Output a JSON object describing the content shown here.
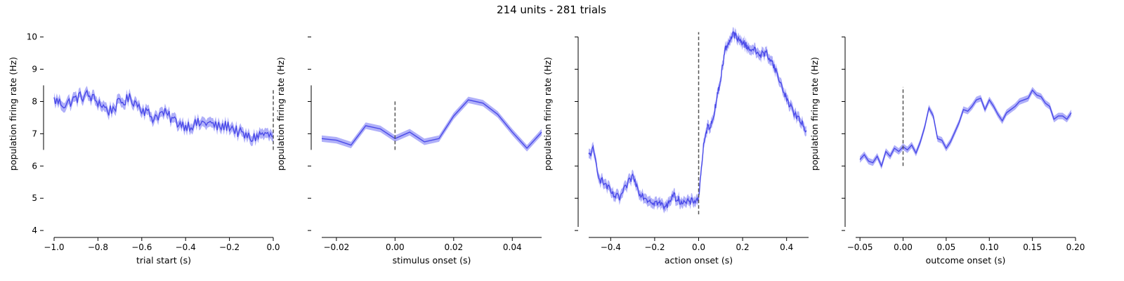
{
  "figure": {
    "title": "214 units - 281 trials"
  },
  "chart_data": [
    {
      "type": "line",
      "xlabel": "trial start (s)",
      "ylabel": "population firing rate (Hz)",
      "xlim": [
        -1.0,
        0.0
      ],
      "ylim": [
        3.85,
        10.45
      ],
      "xticks": [
        -1.0,
        -0.8,
        -0.6,
        -0.4,
        -0.2,
        0.0
      ],
      "xtick_labels": [
        "−1.0",
        "−0.8",
        "−0.6",
        "−0.4",
        "−0.2",
        "0.0"
      ],
      "yticks": [
        4,
        5,
        6,
        7,
        8,
        9,
        10
      ],
      "ytick_labels": [
        "4",
        "5",
        "6",
        "7",
        "8",
        "9",
        "10"
      ],
      "event_line": 0.0,
      "event_line_range": [
        6.5,
        8.4
      ],
      "band_width": 0.3,
      "line_color": "#4a4ae8",
      "band_color": "#7b7bf5",
      "event_color": "#555555",
      "x": [
        -1.0,
        -0.95,
        -0.9,
        -0.85,
        -0.8,
        -0.75,
        -0.7,
        -0.65,
        -0.6,
        -0.55,
        -0.5,
        -0.45,
        -0.4,
        -0.35,
        -0.3,
        -0.25,
        -0.2,
        -0.15,
        -0.1,
        -0.05,
        0.0
      ],
      "values": [
        8.05,
        7.9,
        8.1,
        8.2,
        8.0,
        7.7,
        7.95,
        8.1,
        7.8,
        7.5,
        7.65,
        7.4,
        7.25,
        7.3,
        7.35,
        7.2,
        7.25,
        7.0,
        6.85,
        7.0,
        6.9
      ],
      "noise": 0.18
    },
    {
      "type": "line",
      "xlabel": "stimulus onset (s)",
      "ylabel": "population firing rate (Hz)",
      "xlim": [
        -0.025,
        0.05
      ],
      "ylim": [
        3.85,
        10.45
      ],
      "xticks": [
        -0.02,
        0.0,
        0.02,
        0.04
      ],
      "xtick_labels": [
        "−0.02",
        "0.00",
        "0.02",
        "0.04"
      ],
      "yticks": [
        4,
        5,
        6,
        7,
        8,
        9,
        10
      ],
      "ytick_labels": [
        "",
        "",
        "",
        "",
        "",
        "",
        ""
      ],
      "event_line": 0.0,
      "event_line_range": [
        6.5,
        8.05
      ],
      "band_width": 0.2,
      "line_color": "#4a4ae8",
      "band_color": "#7b7bf5",
      "event_color": "#555555",
      "x": [
        -0.025,
        -0.02,
        -0.015,
        -0.01,
        -0.005,
        0.0,
        0.005,
        0.01,
        0.015,
        0.02,
        0.025,
        0.03,
        0.035,
        0.04,
        0.045,
        0.05
      ],
      "values": [
        6.85,
        6.8,
        6.65,
        7.25,
        7.15,
        6.85,
        7.05,
        6.75,
        6.85,
        7.55,
        8.05,
        7.95,
        7.6,
        7.05,
        6.55,
        7.05
      ],
      "noise": 0
    },
    {
      "type": "line",
      "xlabel": "action onset (s)",
      "ylabel": "population firing rate (Hz)",
      "xlim": [
        -0.5,
        0.5
      ],
      "ylim": [
        3.85,
        10.45
      ],
      "xticks": [
        -0.4,
        -0.2,
        0.0,
        0.2,
        0.4
      ],
      "xtick_labels": [
        "−0.4",
        "−0.2",
        "0.0",
        "0.2",
        "0.4"
      ],
      "yticks": [
        4,
        5,
        6,
        7,
        8,
        9,
        10
      ],
      "ytick_labels": [
        "",
        "",
        "",
        "",
        "",
        "",
        ""
      ],
      "event_line": 0.0,
      "event_line_range": [
        4.5,
        10.15
      ],
      "band_width": 0.3,
      "line_color": "#4a4ae8",
      "band_color": "#7b7bf5",
      "event_color": "#555555",
      "x": [
        -0.5,
        -0.48,
        -0.45,
        -0.42,
        -0.39,
        -0.36,
        -0.33,
        -0.3,
        -0.27,
        -0.24,
        -0.21,
        -0.18,
        -0.15,
        -0.12,
        -0.09,
        -0.06,
        -0.03,
        0.0,
        0.02,
        0.04,
        0.06,
        0.08,
        0.1,
        0.12,
        0.14,
        0.16,
        0.18,
        0.2,
        0.22,
        0.25,
        0.28,
        0.31,
        0.34,
        0.37,
        0.4,
        0.43,
        0.46,
        0.49
      ],
      "values": [
        6.3,
        6.5,
        5.6,
        5.4,
        5.1,
        5.0,
        5.35,
        5.7,
        5.2,
        5.0,
        4.9,
        4.85,
        4.7,
        5.1,
        4.95,
        4.85,
        4.9,
        5.0,
        6.5,
        7.2,
        7.3,
        8.0,
        8.7,
        9.6,
        9.9,
        10.1,
        9.9,
        9.85,
        9.7,
        9.6,
        9.45,
        9.5,
        9.15,
        8.6,
        8.1,
        7.7,
        7.4,
        7.1
      ],
      "noise": 0.12
    },
    {
      "type": "line",
      "xlabel": "outcome onset (s)",
      "ylabel": "population firing rate (Hz)",
      "xlim": [
        -0.055,
        0.2
      ],
      "ylim": [
        3.85,
        10.45
      ],
      "xticks": [
        -0.05,
        0.0,
        0.05,
        0.1,
        0.15,
        0.2
      ],
      "xtick_labels": [
        "−0.05",
        "0.00",
        "0.05",
        "0.10",
        "0.15",
        "0.20"
      ],
      "yticks": [
        4,
        5,
        6,
        7,
        8,
        9,
        10
      ],
      "ytick_labels": [
        "",
        "",
        "",
        "",
        "",
        "",
        ""
      ],
      "event_line": 0.0,
      "event_line_range": [
        6.0,
        8.45
      ],
      "band_width": 0.2,
      "line_color": "#4a4ae8",
      "band_color": "#7b7bf5",
      "event_color": "#555555",
      "x": [
        -0.05,
        -0.045,
        -0.04,
        -0.035,
        -0.03,
        -0.025,
        -0.02,
        -0.015,
        -0.01,
        -0.005,
        0.0,
        0.005,
        0.01,
        0.015,
        0.02,
        0.025,
        0.03,
        0.035,
        0.04,
        0.045,
        0.05,
        0.055,
        0.06,
        0.065,
        0.07,
        0.075,
        0.08,
        0.085,
        0.09,
        0.095,
        0.1,
        0.105,
        0.11,
        0.115,
        0.12,
        0.125,
        0.13,
        0.135,
        0.14,
        0.145,
        0.15,
        0.155,
        0.16,
        0.165,
        0.17,
        0.175,
        0.18,
        0.185,
        0.19,
        0.195
      ],
      "values": [
        6.2,
        6.35,
        6.15,
        6.1,
        6.3,
        6.0,
        6.45,
        6.3,
        6.55,
        6.45,
        6.6,
        6.5,
        6.65,
        6.4,
        6.75,
        7.2,
        7.8,
        7.55,
        6.85,
        6.8,
        6.55,
        6.75,
        7.05,
        7.35,
        7.75,
        7.7,
        7.85,
        8.05,
        8.1,
        7.75,
        8.05,
        7.85,
        7.6,
        7.4,
        7.65,
        7.75,
        7.85,
        8.0,
        8.05,
        8.1,
        8.35,
        8.2,
        8.15,
        7.95,
        7.85,
        7.45,
        7.55,
        7.55,
        7.45,
        7.65
      ],
      "noise": 0
    }
  ]
}
